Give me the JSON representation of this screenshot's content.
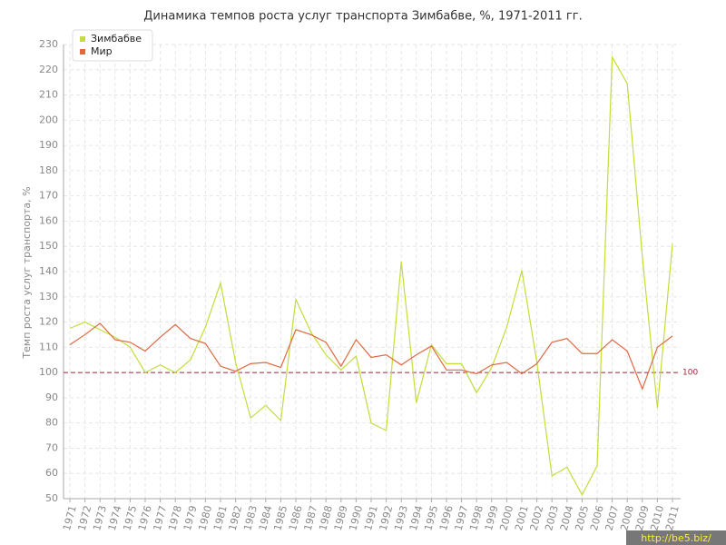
{
  "chart_data": {
    "type": "line",
    "title": "Динамика темпов роста услуг транспорта Зимбабве, %, 1971-2011 гг.",
    "y_label": "Темп роста услуг транспорта, %",
    "categories": [
      "1971",
      "1972",
      "1973",
      "1974",
      "1975",
      "1976",
      "1977",
      "1978",
      "1979",
      "1980",
      "1981",
      "1982",
      "1983",
      "1984",
      "1985",
      "1986",
      "1987",
      "1988",
      "1989",
      "1990",
      "1991",
      "1992",
      "1993",
      "1994",
      "1995",
      "1996",
      "1997",
      "1998",
      "1999",
      "2000",
      "2001",
      "2002",
      "2003",
      "2004",
      "2005",
      "2006",
      "2007",
      "2008",
      "2009",
      "2010",
      "2011"
    ],
    "series": [
      {
        "name": "Зимбабве",
        "color": "#c5dc3a",
        "values": [
          117.5,
          120,
          117,
          114,
          110,
          100,
          103,
          100,
          105,
          118,
          135.5,
          104,
          82,
          87,
          81,
          129,
          116,
          107,
          101,
          106.5,
          80,
          77,
          144,
          88,
          111,
          103.5,
          103.5,
          92,
          102,
          118,
          140.5,
          104,
          59,
          62.5,
          51.5,
          63,
          225,
          214.5,
          146,
          86,
          151
        ]
      },
      {
        "name": "Мир",
        "color": "#e06840",
        "values": [
          111,
          115,
          119.5,
          113,
          112,
          108.5,
          114,
          119,
          113.5,
          111.5,
          102.5,
          100.5,
          103.5,
          104,
          102,
          117,
          115,
          112,
          102.5,
          113,
          106,
          107,
          103,
          107,
          110.5,
          101,
          101,
          99.5,
          103,
          104,
          99.5,
          103.5,
          112,
          113.5,
          107.5,
          107.5,
          113,
          108.5,
          93.5,
          110,
          114.5
        ]
      }
    ],
    "ylim": [
      50,
      230
    ],
    "yticks": [
      50,
      60,
      70,
      80,
      90,
      100,
      110,
      120,
      130,
      140,
      150,
      160,
      170,
      180,
      190,
      200,
      210,
      220,
      230
    ],
    "reference_line": {
      "value": 100,
      "color": "#a0283c"
    },
    "grid": true,
    "legend": "top-left",
    "watermark": "http://be5.biz/"
  }
}
